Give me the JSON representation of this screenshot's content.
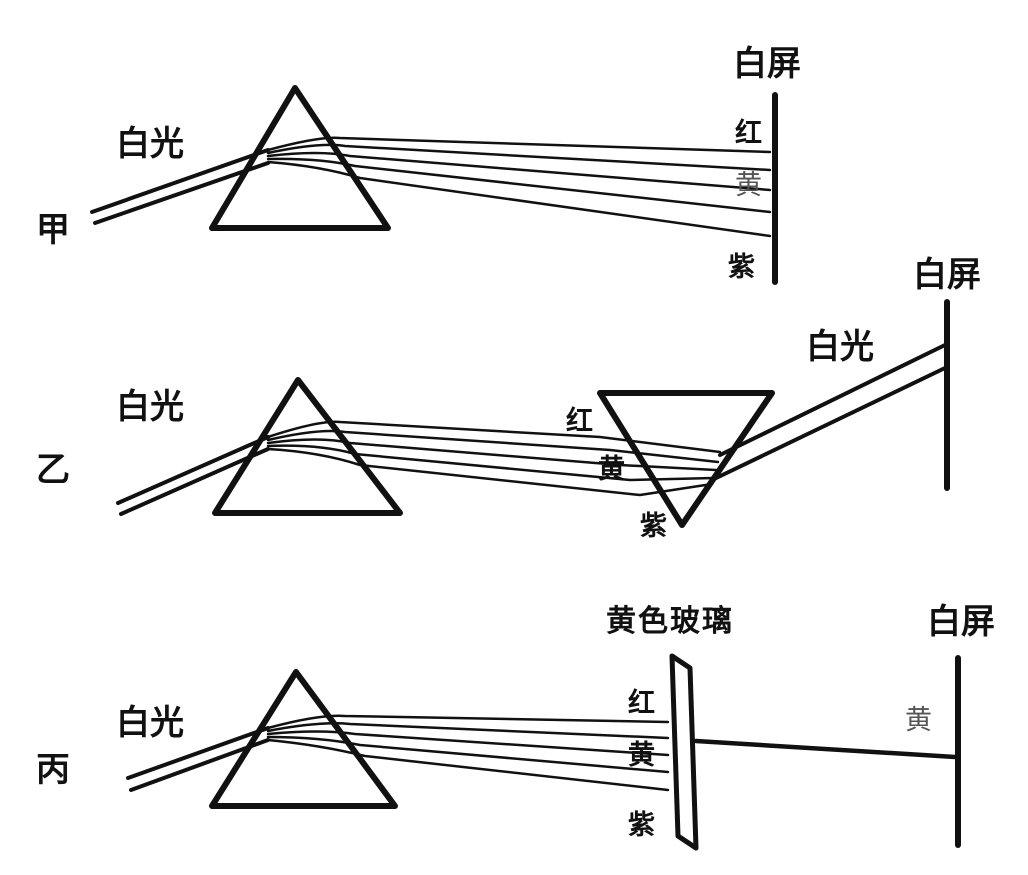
{
  "panel_a": {
    "tag": "甲",
    "light": "白光",
    "screen": "白屏",
    "red": "红",
    "yellow": "黄",
    "violet": "紫"
  },
  "panel_b": {
    "tag": "乙",
    "light_in": "白光",
    "light_out": "白光",
    "screen": "白屏",
    "red": "红",
    "yellow": "黄",
    "violet": "紫"
  },
  "panel_c": {
    "tag": "丙",
    "light": "白光",
    "glass": "黄色玻璃",
    "screen": "白屏",
    "red": "红",
    "yellow": "黄",
    "violet": "紫",
    "screen_color": "黄"
  }
}
